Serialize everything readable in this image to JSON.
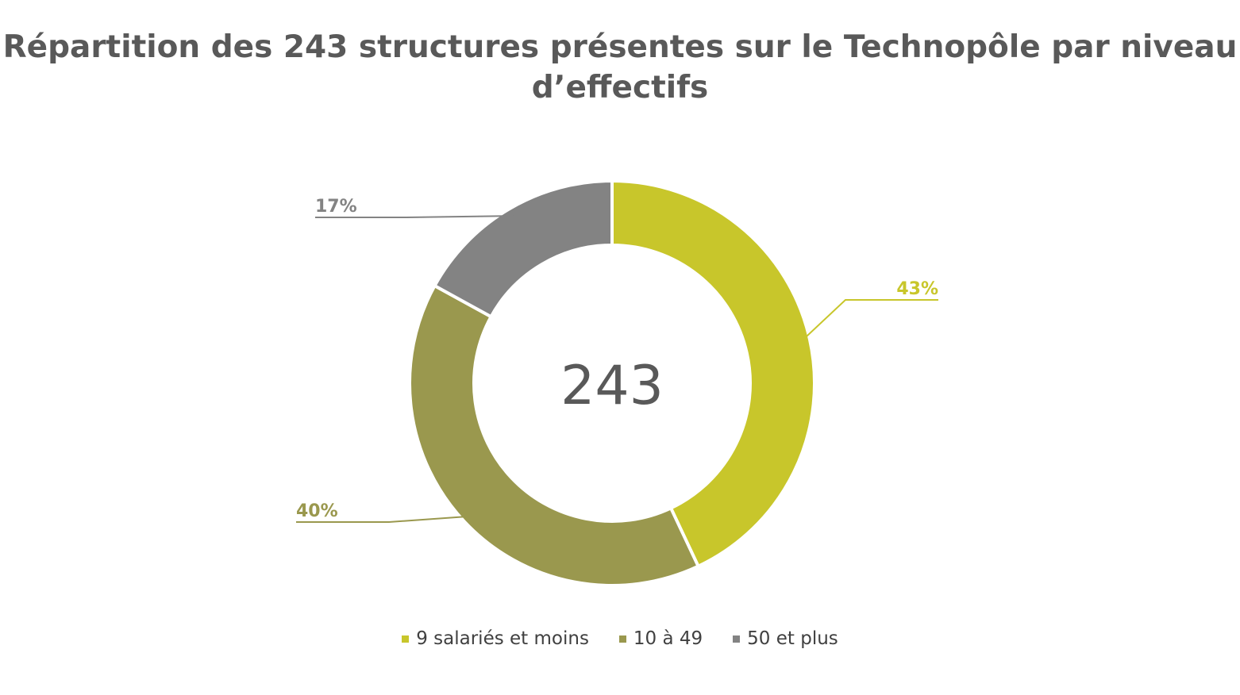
{
  "chart_data": {
    "type": "pie",
    "variant": "donut",
    "title": "Répartition des 243 structures présentes sur le Technopôle par niveau d’effectifs",
    "center_label": "243",
    "categories": [
      "9 salariés et moins",
      "10 à 49",
      "50 et plus"
    ],
    "values": [
      43,
      40,
      17
    ],
    "value_labels": [
      "43%",
      "40%",
      "17%"
    ],
    "colors": [
      "#C8C62B",
      "#9A984E",
      "#838383"
    ],
    "legend": "bottom",
    "start_angle": "top, clockwise"
  }
}
